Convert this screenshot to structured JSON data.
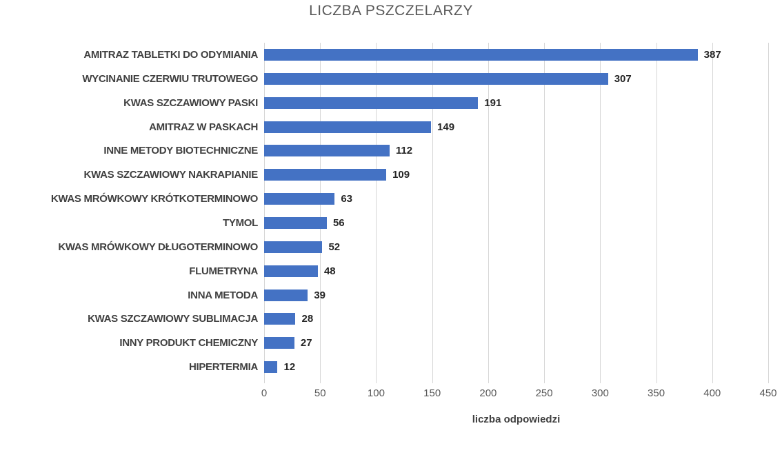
{
  "title": "LICZBA PSZCZELARZY",
  "chart_data": {
    "type": "bar",
    "orientation": "horizontal",
    "title": "LICZBA PSZCZELARZY",
    "xlabel": "liczba odpowiedzi",
    "ylabel": "",
    "xlim": [
      0,
      450
    ],
    "xticks": [
      0,
      50,
      100,
      150,
      200,
      250,
      300,
      350,
      400,
      450
    ],
    "grid": true,
    "data_labels": true,
    "legend": false,
    "bar_color": "#4472C4",
    "gridline_color": "#D6D6D6",
    "categories": [
      "AMITRAZ TABLETKI DO ODYMIANIA",
      "WYCINANIE CZERWIU TRUTOWEGO",
      "KWAS SZCZAWIOWY PASKI",
      "AMITRAZ W PASKACH",
      "INNE METODY BIOTECHNICZNE",
      "KWAS SZCZAWIOWY NAKRAPIANIE",
      "KWAS MRÓWKOWY KRÓTKOTERMINOWO",
      "TYMOL",
      "KWAS MRÓWKOWY DŁUGOTERMINOWO",
      "FLUMETRYNA",
      "INNA METODA",
      "KWAS SZCZAWIOWY SUBLIMACJA",
      "INNY PRODUKT CHEMICZNY",
      "HIPERTERMIA"
    ],
    "values": [
      387,
      307,
      191,
      149,
      112,
      109,
      63,
      56,
      52,
      48,
      39,
      28,
      27,
      12
    ]
  }
}
